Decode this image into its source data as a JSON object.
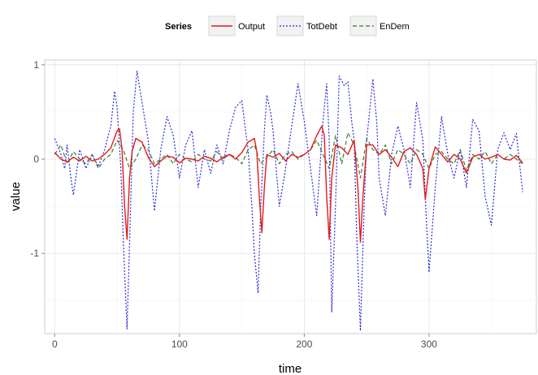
{
  "chart_data": {
    "type": "line",
    "title": "",
    "xlabel": "time",
    "ylabel": "value",
    "xlim": [
      -8,
      386
    ],
    "ylim": [
      -1.85,
      1.05
    ],
    "xticks": [
      0,
      100,
      200,
      300
    ],
    "yticks": [
      -1,
      0,
      1
    ],
    "grid": true,
    "legend": {
      "title": "Series",
      "placement": "top-center",
      "entries": [
        "Output",
        "TotDebt",
        "EnDem"
      ]
    },
    "series": [
      {
        "name": "Output",
        "color": "#e31a1c",
        "dash": "solid",
        "x": [
          0,
          5,
          10,
          15,
          20,
          25,
          30,
          35,
          40,
          45,
          50,
          52,
          54,
          56,
          58,
          60,
          62,
          65,
          70,
          75,
          80,
          85,
          90,
          95,
          100,
          105,
          110,
          115,
          120,
          125,
          130,
          135,
          140,
          145,
          150,
          155,
          160,
          162,
          164,
          166,
          168,
          170,
          175,
          180,
          185,
          190,
          195,
          200,
          205,
          210,
          214,
          216,
          218,
          220,
          222,
          225,
          230,
          235,
          240,
          243,
          245,
          247,
          250,
          255,
          260,
          265,
          270,
          275,
          280,
          285,
          290,
          295,
          297,
          300,
          305,
          310,
          315,
          320,
          325,
          330,
          335,
          340,
          345,
          350,
          355,
          360,
          365,
          370,
          375
        ],
        "y": [
          0.07,
          0.0,
          -0.03,
          0.02,
          -0.02,
          0.03,
          -0.02,
          0.0,
          0.05,
          0.12,
          0.3,
          0.32,
          0.1,
          -0.5,
          -0.85,
          -0.2,
          0.08,
          0.22,
          0.18,
          0.02,
          -0.08,
          -0.02,
          0.03,
          0.02,
          -0.04,
          0.01,
          0.0,
          -0.02,
          0.03,
          0.01,
          -0.03,
          0.02,
          0.05,
          0.0,
          0.07,
          0.18,
          0.22,
          0.08,
          -0.4,
          -0.78,
          -0.3,
          0.05,
          0.02,
          0.06,
          -0.02,
          0.05,
          0.02,
          0.05,
          0.1,
          0.25,
          0.35,
          0.25,
          -0.4,
          -0.85,
          -0.2,
          0.15,
          0.12,
          0.05,
          0.2,
          -0.3,
          -0.88,
          -0.4,
          0.15,
          0.15,
          0.05,
          0.1,
          0.02,
          -0.08,
          0.08,
          0.12,
          0.05,
          -0.1,
          -0.43,
          -0.1,
          0.13,
          0.05,
          -0.03,
          0.05,
          0.0,
          -0.15,
          0.02,
          0.05,
          0.0,
          0.02,
          0.05,
          0.0,
          -0.01,
          0.04,
          -0.04
        ]
      },
      {
        "name": "TotDebt",
        "color": "#2b2bd8",
        "dash": "dotted",
        "x": [
          0,
          5,
          8,
          10,
          13,
          15,
          20,
          25,
          30,
          35,
          40,
          45,
          48,
          50,
          53,
          55,
          58,
          60,
          63,
          66,
          70,
          75,
          80,
          85,
          90,
          95,
          100,
          105,
          110,
          115,
          120,
          125,
          130,
          135,
          140,
          145,
          150,
          153,
          155,
          158,
          160,
          163,
          165,
          168,
          170,
          173,
          175,
          180,
          185,
          190,
          195,
          200,
          205,
          210,
          215,
          218,
          220,
          222,
          225,
          228,
          232,
          235,
          238,
          240,
          242,
          245,
          248,
          250,
          255,
          258,
          260,
          265,
          270,
          275,
          280,
          285,
          290,
          295,
          298,
          300,
          305,
          310,
          315,
          320,
          325,
          330,
          335,
          340,
          345,
          350,
          355,
          360,
          365,
          370,
          375
        ],
        "y": [
          0.22,
          0.05,
          -0.1,
          0.15,
          -0.2,
          -0.38,
          0.1,
          -0.1,
          0.05,
          -0.08,
          0.1,
          0.35,
          0.72,
          0.55,
          -0.1,
          -0.85,
          -1.8,
          -0.9,
          0.5,
          0.93,
          0.6,
          0.2,
          -0.55,
          0.1,
          0.45,
          0.25,
          -0.2,
          0.15,
          0.3,
          -0.3,
          0.1,
          -0.15,
          0.15,
          -0.05,
          0.3,
          0.55,
          0.62,
          0.3,
          0.1,
          -0.5,
          -1.0,
          -1.42,
          -0.55,
          0.3,
          0.68,
          0.5,
          0.3,
          -0.5,
          -0.1,
          0.35,
          0.8,
          0.4,
          -0.1,
          -0.6,
          0.4,
          0.8,
          0.2,
          -1.62,
          -0.5,
          0.88,
          0.78,
          0.82,
          0.4,
          0.2,
          -0.8,
          -1.82,
          -0.5,
          0.2,
          0.85,
          0.4,
          -0.2,
          -0.6,
          0.05,
          0.35,
          0.1,
          -0.3,
          0.6,
          0.2,
          -0.7,
          -1.2,
          -0.3,
          0.45,
          0.05,
          -0.2,
          0.1,
          -0.3,
          0.42,
          0.3,
          -0.4,
          -0.7,
          0.1,
          0.28,
          0.1,
          0.27,
          -0.35
        ]
      },
      {
        "name": "EnDem",
        "color": "#3a7a3a",
        "dash": "dashed",
        "x": [
          0,
          5,
          10,
          15,
          20,
          25,
          30,
          35,
          40,
          45,
          50,
          55,
          60,
          65,
          70,
          75,
          80,
          85,
          90,
          95,
          100,
          105,
          110,
          115,
          120,
          125,
          130,
          135,
          140,
          145,
          150,
          155,
          160,
          165,
          170,
          175,
          180,
          185,
          190,
          195,
          200,
          205,
          210,
          215,
          220,
          225,
          230,
          235,
          240,
          245,
          250,
          255,
          260,
          265,
          270,
          275,
          280,
          285,
          290,
          295,
          300,
          305,
          310,
          315,
          320,
          325,
          330,
          335,
          340,
          345,
          350,
          355,
          360,
          365,
          370,
          375
        ],
        "y": [
          0.05,
          0.15,
          -0.05,
          0.08,
          0.0,
          -0.05,
          0.05,
          -0.1,
          0.0,
          0.05,
          0.2,
          0.1,
          -0.1,
          0.0,
          0.15,
          0.1,
          -0.05,
          0.0,
          0.05,
          -0.05,
          0.05,
          0.0,
          -0.03,
          0.05,
          0.0,
          -0.02,
          0.08,
          0.0,
          0.05,
          0.02,
          -0.05,
          0.1,
          0.15,
          -0.05,
          0.02,
          0.1,
          -0.05,
          0.05,
          0.08,
          0.0,
          0.05,
          0.1,
          0.2,
          0.05,
          -0.1,
          0.25,
          -0.05,
          0.28,
          0.15,
          -0.2,
          0.22,
          0.1,
          0.05,
          0.15,
          -0.05,
          0.1,
          0.05,
          -0.05,
          0.1,
          0.05,
          -0.1,
          0.05,
          0.08,
          0.0,
          -0.05,
          0.1,
          -0.12,
          0.05,
          0.0,
          0.08,
          -0.05,
          0.05,
          0.0,
          0.05,
          0.0,
          -0.05
        ]
      }
    ]
  }
}
